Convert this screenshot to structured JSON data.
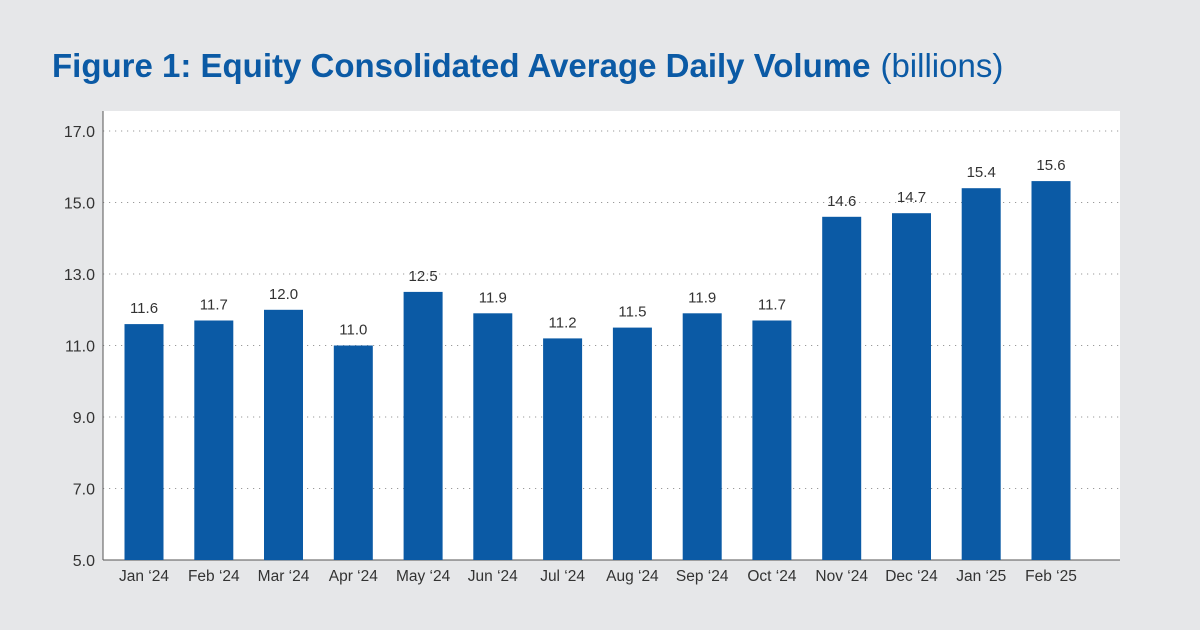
{
  "title": "Figure 1: Equity Consolidated Average Daily Volume",
  "title_unit": "(billions)",
  "chart_data": {
    "type": "bar",
    "title": "Figure 1: Equity Consolidated Average Daily Volume (billions)",
    "categories": [
      "Jan ‘24",
      "Feb ‘24",
      "Mar ‘24",
      "Apr ‘24",
      "May ‘24",
      "Jun ‘24",
      "Jul ‘24",
      "Aug ‘24",
      "Sep ‘24",
      "Oct ‘24",
      "Nov ‘24",
      "Dec ‘24",
      "Jan ‘25",
      "Feb ‘25"
    ],
    "values": [
      11.6,
      11.7,
      12.0,
      11.0,
      12.5,
      11.9,
      11.2,
      11.5,
      11.9,
      11.7,
      14.6,
      14.7,
      15.4,
      15.6
    ],
    "data_labels": [
      "11.6",
      "11.7",
      "12.0",
      "11.0",
      "12.5",
      "11.9",
      "11.2",
      "11.5",
      "11.9",
      "11.7",
      "14.6",
      "14.7",
      "15.4",
      "15.6"
    ],
    "yticks": [
      "5.0",
      "7.0",
      "9.0",
      "11.0",
      "13.0",
      "15.0",
      "17.0"
    ],
    "ylim": [
      5,
      17
    ],
    "xlabel": "",
    "ylabel": "",
    "grid": true,
    "legend": "none",
    "colors": {
      "bar": "#0b5aa5",
      "title": "#0b5aa5",
      "background": "#e6e7e9",
      "plot_background": "#ffffff",
      "text": "#333333",
      "grid": "#9a9a9a"
    }
  }
}
